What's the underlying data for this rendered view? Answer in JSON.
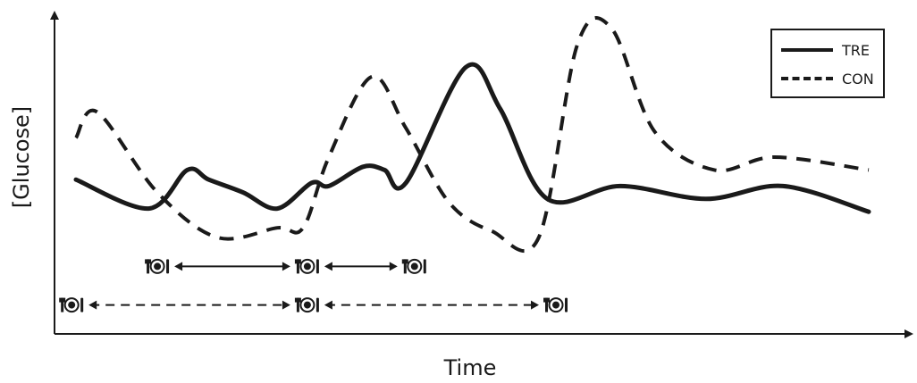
{
  "chart_data": {
    "type": "line",
    "title": "",
    "xlabel": "Time",
    "ylabel": "[Glucose]",
    "grid": false,
    "legend_position": "top-right",
    "axes_ticks": false,
    "series": [
      {
        "name": "TRE",
        "style": "solid",
        "color": "#1a1a1a",
        "points": [
          [
            0.025,
            0.48
          ],
          [
            0.11,
            0.39
          ],
          [
            0.155,
            0.51
          ],
          [
            0.18,
            0.48
          ],
          [
            0.22,
            0.44
          ],
          [
            0.26,
            0.39
          ],
          [
            0.3,
            0.47
          ],
          [
            0.32,
            0.46
          ],
          [
            0.36,
            0.52
          ],
          [
            0.385,
            0.51
          ],
          [
            0.41,
            0.47
          ],
          [
            0.48,
            0.83
          ],
          [
            0.52,
            0.7
          ],
          [
            0.575,
            0.42
          ],
          [
            0.66,
            0.46
          ],
          [
            0.76,
            0.42
          ],
          [
            0.85,
            0.46
          ],
          [
            0.95,
            0.38
          ]
        ]
      },
      {
        "name": "CON",
        "style": "dashed",
        "color": "#1a1a1a",
        "points": [
          [
            0.025,
            0.61
          ],
          [
            0.05,
            0.69
          ],
          [
            0.12,
            0.44
          ],
          [
            0.19,
            0.3
          ],
          [
            0.26,
            0.33
          ],
          [
            0.29,
            0.33
          ],
          [
            0.32,
            0.55
          ],
          [
            0.37,
            0.8
          ],
          [
            0.41,
            0.64
          ],
          [
            0.46,
            0.41
          ],
          [
            0.51,
            0.32
          ],
          [
            0.565,
            0.3
          ],
          [
            0.61,
            0.9
          ],
          [
            0.65,
            0.95
          ],
          [
            0.7,
            0.63
          ],
          [
            0.77,
            0.51
          ],
          [
            0.84,
            0.55
          ],
          [
            0.95,
            0.51
          ]
        ]
      }
    ],
    "meal_intervals": [
      {
        "group": "TRE",
        "style": "solid",
        "meal_times": [
          0.12,
          0.295,
          0.42
        ],
        "level": 0.21
      },
      {
        "group": "CON",
        "style": "dashed",
        "meal_times": [
          0.02,
          0.295,
          0.585
        ],
        "level": 0.09
      }
    ]
  },
  "icons": {
    "meal": "meal-plate-icon"
  },
  "colors": {
    "ink": "#1a1a1a",
    "background": "#ffffff"
  }
}
